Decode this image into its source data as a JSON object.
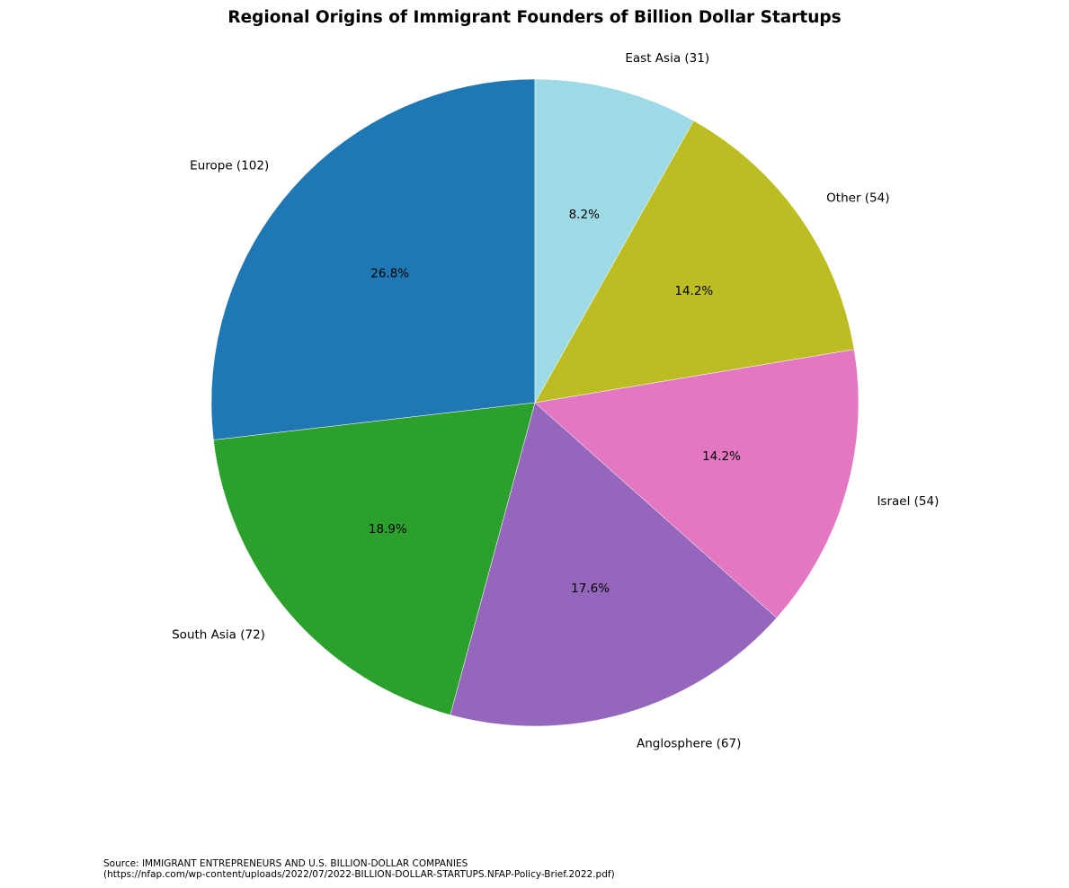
{
  "chart_data": {
    "type": "pie",
    "title": "Regional Origins of Immigrant Founders of Billion Dollar Startups",
    "slices": [
      {
        "label": "Europe (102)",
        "value": 102,
        "pct_label": "26.8%",
        "color": "#1f77b4"
      },
      {
        "label": "South Asia (72)",
        "value": 72,
        "pct_label": "18.9%",
        "color": "#2ca02c"
      },
      {
        "label": "Anglosphere (67)",
        "value": 67,
        "pct_label": "17.6%",
        "color": "#9467bd"
      },
      {
        "label": "Israel (54)",
        "value": 54,
        "pct_label": "14.2%",
        "color": "#e377c2"
      },
      {
        "label": "Other (54)",
        "value": 54,
        "pct_label": "14.2%",
        "color": "#bcbd22"
      },
      {
        "label": "East Asia (31)",
        "value": 31,
        "pct_label": "8.2%",
        "color": "#9edae5"
      }
    ],
    "start_angle_deg": 90,
    "direction": "counterclockwise"
  },
  "source": {
    "line1": "Source: IMMIGRANT ENTREPRENEURS AND U.S. BILLION-DOLLAR COMPANIES",
    "line2": "(https://nfap.com/wp-content/uploads/2022/07/2022-BILLION-DOLLAR-STARTUPS.NFAP-Policy-Brief.2022.pdf)"
  }
}
